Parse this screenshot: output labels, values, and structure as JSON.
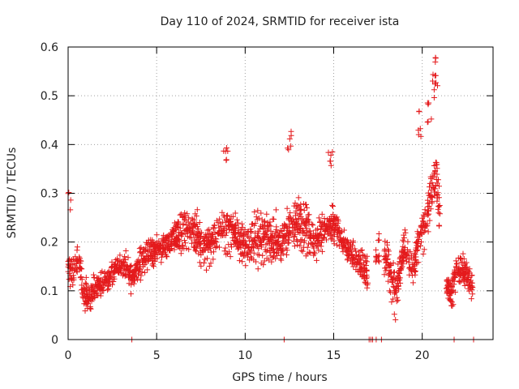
{
  "chart_data": {
    "type": "scatter",
    "title": "Day 110 of 2024, SRMTID for receiver ista",
    "xlabel": "GPS time / hours",
    "ylabel": "SRMTID / TECUs",
    "xlim": [
      0,
      24
    ],
    "ylim": [
      0,
      0.6
    ],
    "x_ticks": [
      0,
      5,
      10,
      15,
      20
    ],
    "x_tick_labels": [
      "0",
      "5",
      "10",
      "15",
      "20"
    ],
    "y_ticks": [
      0,
      0.1,
      0.2,
      0.3,
      0.4,
      0.5,
      0.6
    ],
    "y_tick_labels": [
      "0",
      "0.1",
      "0.2",
      "0.3",
      "0.4",
      "0.5",
      "0.6"
    ],
    "grid": true,
    "marker": "+",
    "colors": {
      "marker": "#e41a1c",
      "axis": "#000000",
      "grid": "#a0a0a0",
      "text": "#222222"
    },
    "series": [
      {
        "name": "SRMTID",
        "profile": [
          [
            0.0,
            0.15
          ],
          [
            0.3,
            0.14
          ],
          [
            0.6,
            0.18
          ],
          [
            0.8,
            0.12
          ],
          [
            1.0,
            0.09
          ],
          [
            1.3,
            0.09
          ],
          [
            1.6,
            0.11
          ],
          [
            2.0,
            0.12
          ],
          [
            2.4,
            0.13
          ],
          [
            2.8,
            0.14
          ],
          [
            3.2,
            0.15
          ],
          [
            3.6,
            0.12
          ],
          [
            4.0,
            0.15
          ],
          [
            4.5,
            0.17
          ],
          [
            5.0,
            0.18
          ],
          [
            5.5,
            0.2
          ],
          [
            6.0,
            0.21
          ],
          [
            6.5,
            0.23
          ],
          [
            7.0,
            0.22
          ],
          [
            7.5,
            0.2
          ],
          [
            8.0,
            0.19
          ],
          [
            8.5,
            0.22
          ],
          [
            9.0,
            0.23
          ],
          [
            9.5,
            0.22
          ],
          [
            10.0,
            0.2
          ],
          [
            10.5,
            0.21
          ],
          [
            11.0,
            0.22
          ],
          [
            11.5,
            0.21
          ],
          [
            12.0,
            0.2
          ],
          [
            12.5,
            0.23
          ],
          [
            13.0,
            0.24
          ],
          [
            13.5,
            0.22
          ],
          [
            14.0,
            0.18
          ],
          [
            14.5,
            0.21
          ],
          [
            15.0,
            0.22
          ],
          [
            15.5,
            0.2
          ],
          [
            16.0,
            0.17
          ],
          [
            16.5,
            0.15
          ],
          [
            17.0,
            0.13
          ],
          [
            17.5,
            0.18
          ],
          [
            18.0,
            0.16
          ],
          [
            18.5,
            0.1
          ],
          [
            19.0,
            0.18
          ],
          [
            19.5,
            0.14
          ],
          [
            20.0,
            0.22
          ],
          [
            20.5,
            0.3
          ],
          [
            20.8,
            0.35
          ],
          [
            21.2,
            0.15
          ],
          [
            21.6,
            0.1
          ],
          [
            22.0,
            0.15
          ],
          [
            22.5,
            0.14
          ],
          [
            23.0,
            0.09
          ]
        ],
        "spread": [
          [
            0.0,
            0.05
          ],
          [
            2.0,
            0.04
          ],
          [
            5.0,
            0.07
          ],
          [
            8.0,
            0.09
          ],
          [
            10.0,
            0.09
          ],
          [
            13.0,
            0.09
          ],
          [
            15.0,
            0.08
          ],
          [
            17.0,
            0.05
          ],
          [
            18.0,
            0.07
          ],
          [
            20.0,
            0.08
          ],
          [
            20.8,
            0.12
          ],
          [
            21.5,
            0.05
          ],
          [
            23.0,
            0.05
          ]
        ],
        "gaps": [
          [
            16.95,
            17.35
          ],
          [
            17.6,
            17.85
          ],
          [
            21.0,
            21.35
          ],
          [
            22.85,
            24.0
          ]
        ],
        "peaks": [
          [
            0.05,
            0.32
          ],
          [
            8.9,
            0.42
          ],
          [
            12.5,
            0.44
          ],
          [
            14.8,
            0.4
          ],
          [
            20.7,
            0.58
          ],
          [
            20.8,
            0.55
          ],
          [
            20.4,
            0.5
          ],
          [
            19.9,
            0.47
          ]
        ],
        "zero_marks": [
          3.6,
          12.2,
          17.0,
          17.1,
          17.2,
          17.4,
          17.7,
          21.8,
          22.9
        ]
      }
    ]
  }
}
